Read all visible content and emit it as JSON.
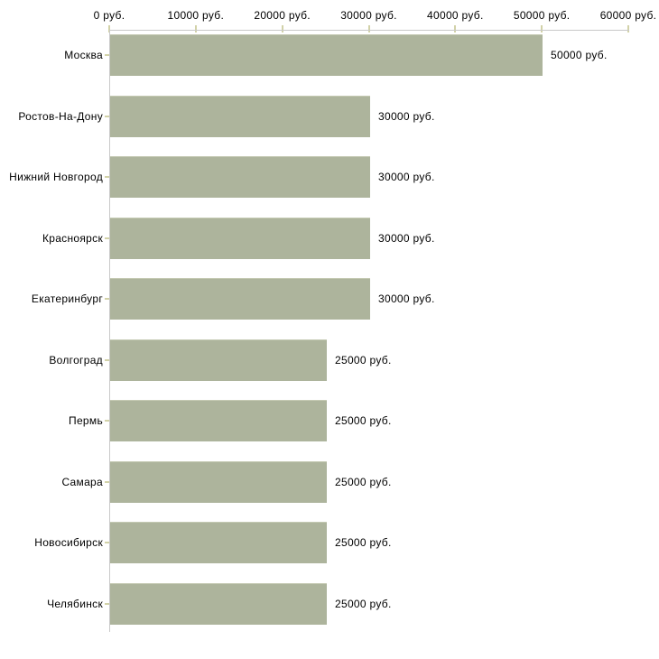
{
  "chart_data": {
    "type": "bar",
    "orientation": "horizontal",
    "title": "",
    "unit": "руб.",
    "categories": [
      "Москва",
      "Ростов-На-Дону",
      "Нижний Новгород",
      "Красноярск",
      "Екатеринбург",
      "Волгоград",
      "Пермь",
      "Самара",
      "Новосибирск",
      "Челябинск"
    ],
    "values": [
      50000,
      30000,
      30000,
      30000,
      30000,
      25000,
      25000,
      25000,
      25000,
      25000
    ],
    "value_labels": [
      "50000 руб.",
      "30000 руб.",
      "30000 руб.",
      "30000 руб.",
      "30000 руб.",
      "25000 руб.",
      "25000 руб.",
      "25000 руб.",
      "25000 руб.",
      "25000 руб."
    ],
    "x_axis": {
      "position": "top",
      "min": 0,
      "max": 60000,
      "tick_values": [
        0,
        10000,
        20000,
        30000,
        40000,
        50000,
        60000
      ],
      "tick_labels": [
        "0 руб.",
        "10000 руб.",
        "20000 руб.",
        "30000 руб.",
        "40000 руб.",
        "50000 руб.",
        "60000 руб."
      ]
    },
    "grid": false,
    "legend": false,
    "colors": {
      "bar": "#adb49c",
      "bar_top_edge": "#c4c9b2",
      "axis_line": "#c9c9c9",
      "tick_mark": "#d2d2a8",
      "text": "#000000",
      "background": "#ffffff"
    }
  }
}
